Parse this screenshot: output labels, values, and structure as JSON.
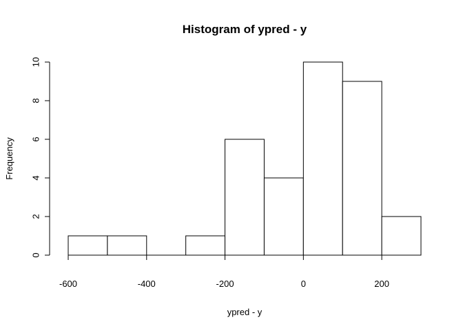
{
  "chart_data": {
    "type": "bar",
    "title": "Histogram of ypred - y",
    "xlabel": "ypred - y",
    "ylabel": "Frequency",
    "bins": [
      {
        "start": -600,
        "end": -500,
        "count": 1
      },
      {
        "start": -500,
        "end": -400,
        "count": 1
      },
      {
        "start": -400,
        "end": -300,
        "count": 0
      },
      {
        "start": -300,
        "end": -200,
        "count": 1
      },
      {
        "start": -200,
        "end": -100,
        "count": 6
      },
      {
        "start": -100,
        "end": 0,
        "count": 4
      },
      {
        "start": 0,
        "end": 100,
        "count": 10
      },
      {
        "start": 100,
        "end": 200,
        "count": 9
      },
      {
        "start": 200,
        "end": 300,
        "count": 2
      }
    ],
    "xlim": [
      -600,
      300
    ],
    "ylim": [
      0,
      10
    ],
    "x_ticks": [
      -600,
      -400,
      -200,
      0,
      200
    ],
    "x_tick_labels": [
      "-600",
      "-400",
      "-200",
      "0",
      "200"
    ],
    "y_ticks": [
      0,
      2,
      4,
      6,
      8,
      10
    ],
    "y_tick_labels": [
      "0",
      "2",
      "4",
      "6",
      "8",
      "10"
    ],
    "grid": false,
    "colors": {
      "bar_fill": "#ffffff",
      "bar_stroke": "#000000"
    }
  }
}
